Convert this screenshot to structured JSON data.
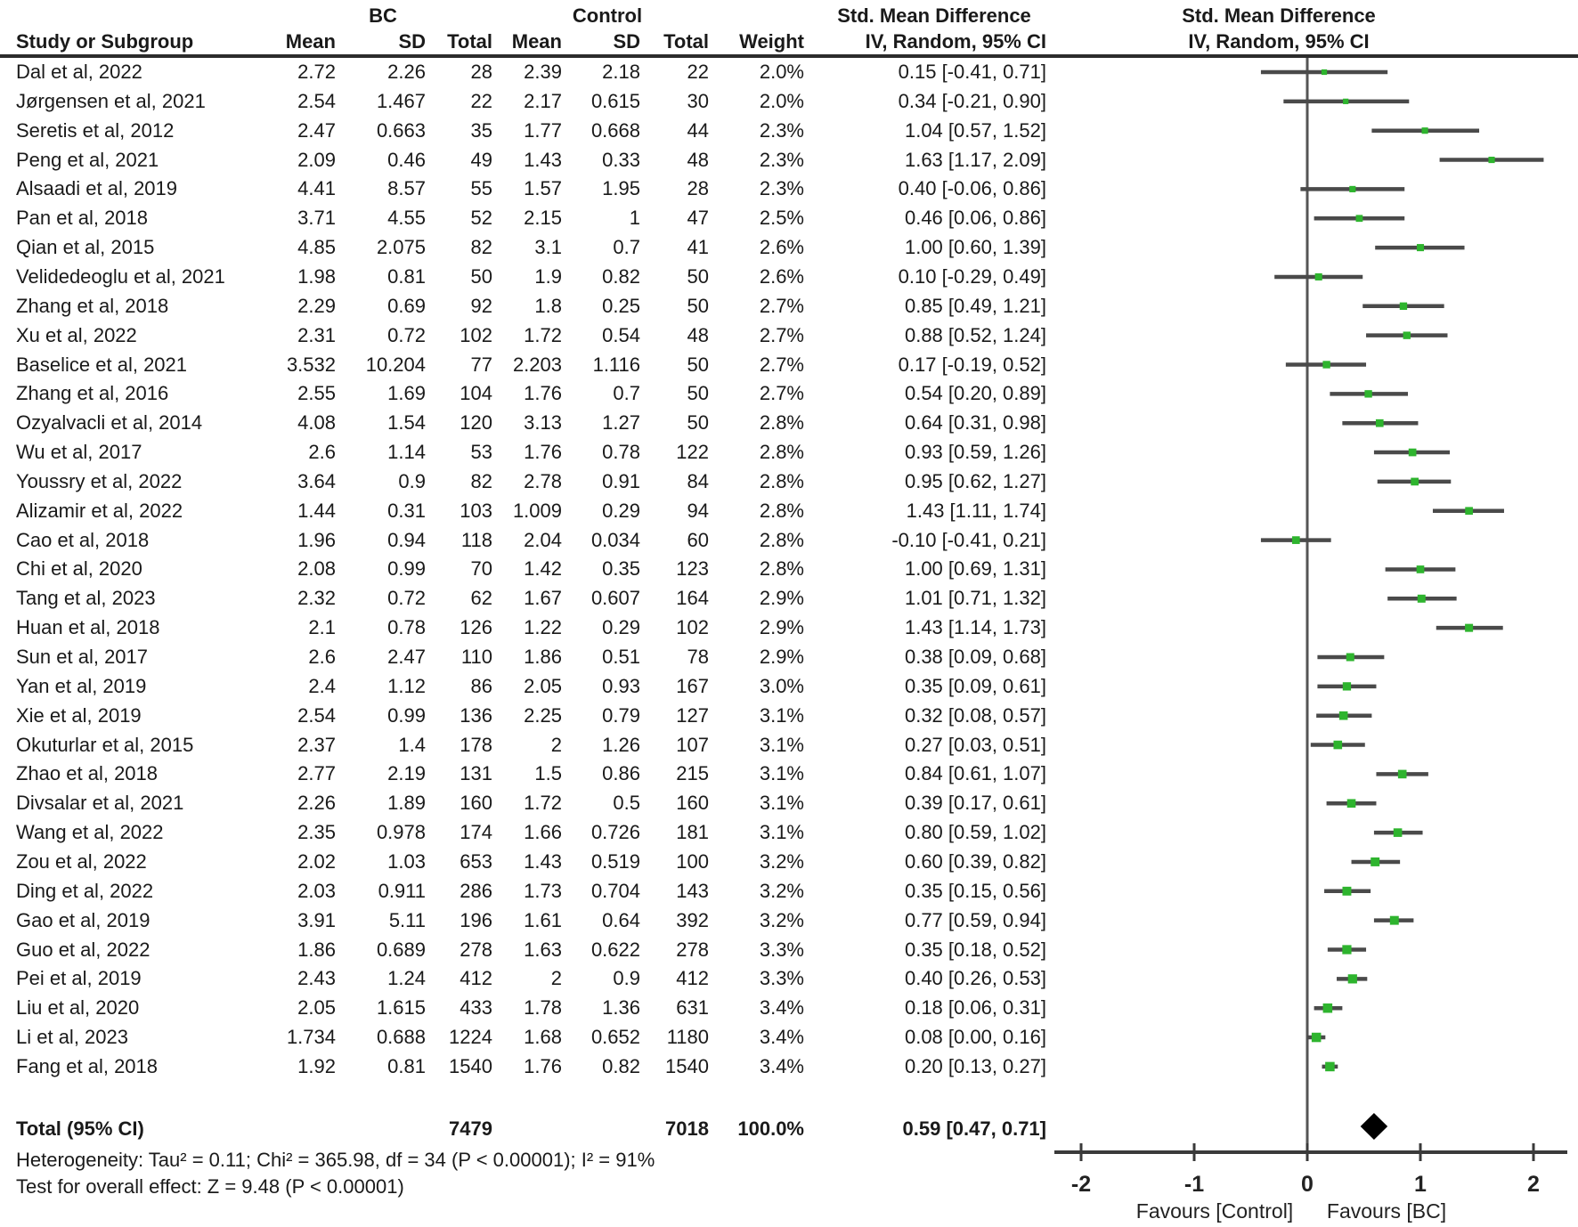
{
  "header": {
    "group_bc": "BC",
    "group_control": "Control",
    "smd": "Std. Mean Difference",
    "method": "IV, Random, 95% CI",
    "study": "Study or Subgroup",
    "mean": "Mean",
    "sd": "SD",
    "total": "Total",
    "weight": "Weight"
  },
  "chart_data": {
    "type": "forest",
    "effect_measure": "Std. Mean Difference",
    "model": "IV, Random, 95% CI",
    "studies": [
      {
        "name": "Dal et al, 2022",
        "bc_mean": "2.72",
        "bc_sd": "2.26",
        "bc_total": "28",
        "c_mean": "2.39",
        "c_sd": "2.18",
        "c_total": "22",
        "weight": "2.0%",
        "ci_label": "0.15 [-0.41, 0.71]",
        "est": 0.15,
        "lo": -0.41,
        "hi": 0.71,
        "w": 2.0
      },
      {
        "name": "Jørgensen et al, 2021",
        "bc_mean": "2.54",
        "bc_sd": "1.467",
        "bc_total": "22",
        "c_mean": "2.17",
        "c_sd": "0.615",
        "c_total": "30",
        "weight": "2.0%",
        "ci_label": "0.34 [-0.21, 0.90]",
        "est": 0.34,
        "lo": -0.21,
        "hi": 0.9,
        "w": 2.0
      },
      {
        "name": "Seretis et al, 2012",
        "bc_mean": "2.47",
        "bc_sd": "0.663",
        "bc_total": "35",
        "c_mean": "1.77",
        "c_sd": "0.668",
        "c_total": "44",
        "weight": "2.3%",
        "ci_label": "1.04 [0.57, 1.52]",
        "est": 1.04,
        "lo": 0.57,
        "hi": 1.52,
        "w": 2.3
      },
      {
        "name": "Peng et al, 2021",
        "bc_mean": "2.09",
        "bc_sd": "0.46",
        "bc_total": "49",
        "c_mean": "1.43",
        "c_sd": "0.33",
        "c_total": "48",
        "weight": "2.3%",
        "ci_label": "1.63 [1.17, 2.09]",
        "est": 1.63,
        "lo": 1.17,
        "hi": 2.09,
        "w": 2.3
      },
      {
        "name": "Alsaadi et al, 2019",
        "bc_mean": "4.41",
        "bc_sd": "8.57",
        "bc_total": "55",
        "c_mean": "1.57",
        "c_sd": "1.95",
        "c_total": "28",
        "weight": "2.3%",
        "ci_label": "0.40 [-0.06, 0.86]",
        "est": 0.4,
        "lo": -0.06,
        "hi": 0.86,
        "w": 2.3
      },
      {
        "name": "Pan et al, 2018",
        "bc_mean": "3.71",
        "bc_sd": "4.55",
        "bc_total": "52",
        "c_mean": "2.15",
        "c_sd": "1",
        "c_total": "47",
        "weight": "2.5%",
        "ci_label": "0.46 [0.06, 0.86]",
        "est": 0.46,
        "lo": 0.06,
        "hi": 0.86,
        "w": 2.5
      },
      {
        "name": "Qian et al, 2015",
        "bc_mean": "4.85",
        "bc_sd": "2.075",
        "bc_total": "82",
        "c_mean": "3.1",
        "c_sd": "0.7",
        "c_total": "41",
        "weight": "2.6%",
        "ci_label": "1.00 [0.60, 1.39]",
        "est": 1.0,
        "lo": 0.6,
        "hi": 1.39,
        "w": 2.6
      },
      {
        "name": "Velidedeoglu et al, 2021",
        "bc_mean": "1.98",
        "bc_sd": "0.81",
        "bc_total": "50",
        "c_mean": "1.9",
        "c_sd": "0.82",
        "c_total": "50",
        "weight": "2.6%",
        "ci_label": "0.10 [-0.29, 0.49]",
        "est": 0.1,
        "lo": -0.29,
        "hi": 0.49,
        "w": 2.6
      },
      {
        "name": "Zhang et al, 2018",
        "bc_mean": "2.29",
        "bc_sd": "0.69",
        "bc_total": "92",
        "c_mean": "1.8",
        "c_sd": "0.25",
        "c_total": "50",
        "weight": "2.7%",
        "ci_label": "0.85 [0.49, 1.21]",
        "est": 0.85,
        "lo": 0.49,
        "hi": 1.21,
        "w": 2.7
      },
      {
        "name": "Xu et al, 2022",
        "bc_mean": "2.31",
        "bc_sd": "0.72",
        "bc_total": "102",
        "c_mean": "1.72",
        "c_sd": "0.54",
        "c_total": "48",
        "weight": "2.7%",
        "ci_label": "0.88 [0.52, 1.24]",
        "est": 0.88,
        "lo": 0.52,
        "hi": 1.24,
        "w": 2.7
      },
      {
        "name": "Baselice et al, 2021",
        "bc_mean": "3.532",
        "bc_sd": "10.204",
        "bc_total": "77",
        "c_mean": "2.203",
        "c_sd": "1.116",
        "c_total": "50",
        "weight": "2.7%",
        "ci_label": "0.17 [-0.19, 0.52]",
        "est": 0.17,
        "lo": -0.19,
        "hi": 0.52,
        "w": 2.7
      },
      {
        "name": "Zhang et al, 2016",
        "bc_mean": "2.55",
        "bc_sd": "1.69",
        "bc_total": "104",
        "c_mean": "1.76",
        "c_sd": "0.7",
        "c_total": "50",
        "weight": "2.7%",
        "ci_label": "0.54 [0.20, 0.89]",
        "est": 0.54,
        "lo": 0.2,
        "hi": 0.89,
        "w": 2.7
      },
      {
        "name": "Ozyalvacli et al, 2014",
        "bc_mean": "4.08",
        "bc_sd": "1.54",
        "bc_total": "120",
        "c_mean": "3.13",
        "c_sd": "1.27",
        "c_total": "50",
        "weight": "2.8%",
        "ci_label": "0.64 [0.31, 0.98]",
        "est": 0.64,
        "lo": 0.31,
        "hi": 0.98,
        "w": 2.8
      },
      {
        "name": "Wu et al, 2017",
        "bc_mean": "2.6",
        "bc_sd": "1.14",
        "bc_total": "53",
        "c_mean": "1.76",
        "c_sd": "0.78",
        "c_total": "122",
        "weight": "2.8%",
        "ci_label": "0.93 [0.59, 1.26]",
        "est": 0.93,
        "lo": 0.59,
        "hi": 1.26,
        "w": 2.8
      },
      {
        "name": "Youssry et al, 2022",
        "bc_mean": "3.64",
        "bc_sd": "0.9",
        "bc_total": "82",
        "c_mean": "2.78",
        "c_sd": "0.91",
        "c_total": "84",
        "weight": "2.8%",
        "ci_label": "0.95 [0.62, 1.27]",
        "est": 0.95,
        "lo": 0.62,
        "hi": 1.27,
        "w": 2.8
      },
      {
        "name": "Alizamir et al, 2022",
        "bc_mean": "1.44",
        "bc_sd": "0.31",
        "bc_total": "103",
        "c_mean": "1.009",
        "c_sd": "0.29",
        "c_total": "94",
        "weight": "2.8%",
        "ci_label": "1.43 [1.11, 1.74]",
        "est": 1.43,
        "lo": 1.11,
        "hi": 1.74,
        "w": 2.8
      },
      {
        "name": "Cao et al, 2018",
        "bc_mean": "1.96",
        "bc_sd": "0.94",
        "bc_total": "118",
        "c_mean": "2.04",
        "c_sd": "0.034",
        "c_total": "60",
        "weight": "2.8%",
        "ci_label": "-0.10 [-0.41, 0.21]",
        "est": -0.1,
        "lo": -0.41,
        "hi": 0.21,
        "w": 2.8
      },
      {
        "name": "Chi et al, 2020",
        "bc_mean": "2.08",
        "bc_sd": "0.99",
        "bc_total": "70",
        "c_mean": "1.42",
        "c_sd": "0.35",
        "c_total": "123",
        "weight": "2.8%",
        "ci_label": "1.00 [0.69, 1.31]",
        "est": 1.0,
        "lo": 0.69,
        "hi": 1.31,
        "w": 2.8
      },
      {
        "name": "Tang et al, 2023",
        "bc_mean": "2.32",
        "bc_sd": "0.72",
        "bc_total": "62",
        "c_mean": "1.67",
        "c_sd": "0.607",
        "c_total": "164",
        "weight": "2.9%",
        "ci_label": "1.01 [0.71, 1.32]",
        "est": 1.01,
        "lo": 0.71,
        "hi": 1.32,
        "w": 2.9
      },
      {
        "name": "Huan et al, 2018",
        "bc_mean": "2.1",
        "bc_sd": "0.78",
        "bc_total": "126",
        "c_mean": "1.22",
        "c_sd": "0.29",
        "c_total": "102",
        "weight": "2.9%",
        "ci_label": "1.43 [1.14, 1.73]",
        "est": 1.43,
        "lo": 1.14,
        "hi": 1.73,
        "w": 2.9
      },
      {
        "name": "Sun et al, 2017",
        "bc_mean": "2.6",
        "bc_sd": "2.47",
        "bc_total": "110",
        "c_mean": "1.86",
        "c_sd": "0.51",
        "c_total": "78",
        "weight": "2.9%",
        "ci_label": "0.38 [0.09, 0.68]",
        "est": 0.38,
        "lo": 0.09,
        "hi": 0.68,
        "w": 2.9
      },
      {
        "name": "Yan et al, 2019",
        "bc_mean": "2.4",
        "bc_sd": "1.12",
        "bc_total": "86",
        "c_mean": "2.05",
        "c_sd": "0.93",
        "c_total": "167",
        "weight": "3.0%",
        "ci_label": "0.35 [0.09, 0.61]",
        "est": 0.35,
        "lo": 0.09,
        "hi": 0.61,
        "w": 3.0
      },
      {
        "name": "Xie et al, 2019",
        "bc_mean": "2.54",
        "bc_sd": "0.99",
        "bc_total": "136",
        "c_mean": "2.25",
        "c_sd": "0.79",
        "c_total": "127",
        "weight": "3.1%",
        "ci_label": "0.32 [0.08, 0.57]",
        "est": 0.32,
        "lo": 0.08,
        "hi": 0.57,
        "w": 3.1
      },
      {
        "name": "Okuturlar et al, 2015",
        "bc_mean": "2.37",
        "bc_sd": "1.4",
        "bc_total": "178",
        "c_mean": "2",
        "c_sd": "1.26",
        "c_total": "107",
        "weight": "3.1%",
        "ci_label": "0.27 [0.03, 0.51]",
        "est": 0.27,
        "lo": 0.03,
        "hi": 0.51,
        "w": 3.1
      },
      {
        "name": "Zhao et al, 2018",
        "bc_mean": "2.77",
        "bc_sd": "2.19",
        "bc_total": "131",
        "c_mean": "1.5",
        "c_sd": "0.86",
        "c_total": "215",
        "weight": "3.1%",
        "ci_label": "0.84 [0.61, 1.07]",
        "est": 0.84,
        "lo": 0.61,
        "hi": 1.07,
        "w": 3.1
      },
      {
        "name": "Divsalar et al, 2021",
        "bc_mean": "2.26",
        "bc_sd": "1.89",
        "bc_total": "160",
        "c_mean": "1.72",
        "c_sd": "0.5",
        "c_total": "160",
        "weight": "3.1%",
        "ci_label": "0.39 [0.17, 0.61]",
        "est": 0.39,
        "lo": 0.17,
        "hi": 0.61,
        "w": 3.1
      },
      {
        "name": "Wang et al, 2022",
        "bc_mean": "2.35",
        "bc_sd": "0.978",
        "bc_total": "174",
        "c_mean": "1.66",
        "c_sd": "0.726",
        "c_total": "181",
        "weight": "3.1%",
        "ci_label": "0.80 [0.59, 1.02]",
        "est": 0.8,
        "lo": 0.59,
        "hi": 1.02,
        "w": 3.1
      },
      {
        "name": "Zou et al, 2022",
        "bc_mean": "2.02",
        "bc_sd": "1.03",
        "bc_total": "653",
        "c_mean": "1.43",
        "c_sd": "0.519",
        "c_total": "100",
        "weight": "3.2%",
        "ci_label": "0.60 [0.39, 0.82]",
        "est": 0.6,
        "lo": 0.39,
        "hi": 0.82,
        "w": 3.2
      },
      {
        "name": "Ding et al, 2022",
        "bc_mean": "2.03",
        "bc_sd": "0.911",
        "bc_total": "286",
        "c_mean": "1.73",
        "c_sd": "0.704",
        "c_total": "143",
        "weight": "3.2%",
        "ci_label": "0.35 [0.15, 0.56]",
        "est": 0.35,
        "lo": 0.15,
        "hi": 0.56,
        "w": 3.2
      },
      {
        "name": "Gao et al, 2019",
        "bc_mean": "3.91",
        "bc_sd": "5.11",
        "bc_total": "196",
        "c_mean": "1.61",
        "c_sd": "0.64",
        "c_total": "392",
        "weight": "3.2%",
        "ci_label": "0.77 [0.59, 0.94]",
        "est": 0.77,
        "lo": 0.59,
        "hi": 0.94,
        "w": 3.2
      },
      {
        "name": "Guo et al, 2022",
        "bc_mean": "1.86",
        "bc_sd": "0.689",
        "bc_total": "278",
        "c_mean": "1.63",
        "c_sd": "0.622",
        "c_total": "278",
        "weight": "3.3%",
        "ci_label": "0.35 [0.18, 0.52]",
        "est": 0.35,
        "lo": 0.18,
        "hi": 0.52,
        "w": 3.3
      },
      {
        "name": "Pei et al, 2019",
        "bc_mean": "2.43",
        "bc_sd": "1.24",
        "bc_total": "412",
        "c_mean": "2",
        "c_sd": "0.9",
        "c_total": "412",
        "weight": "3.3%",
        "ci_label": "0.40 [0.26, 0.53]",
        "est": 0.4,
        "lo": 0.26,
        "hi": 0.53,
        "w": 3.3
      },
      {
        "name": "Liu et al, 2020",
        "bc_mean": "2.05",
        "bc_sd": "1.615",
        "bc_total": "433",
        "c_mean": "1.78",
        "c_sd": "1.36",
        "c_total": "631",
        "weight": "3.4%",
        "ci_label": "0.18 [0.06, 0.31]",
        "est": 0.18,
        "lo": 0.06,
        "hi": 0.31,
        "w": 3.4
      },
      {
        "name": "Li et al, 2023",
        "bc_mean": "1.734",
        "bc_sd": "0.688",
        "bc_total": "1224",
        "c_mean": "1.68",
        "c_sd": "0.652",
        "c_total": "1180",
        "weight": "3.4%",
        "ci_label": "0.08 [0.00, 0.16]",
        "est": 0.08,
        "lo": 0.0,
        "hi": 0.16,
        "w": 3.4
      },
      {
        "name": "Fang et al, 2018",
        "bc_mean": "1.92",
        "bc_sd": "0.81",
        "bc_total": "1540",
        "c_mean": "1.76",
        "c_sd": "0.82",
        "c_total": "1540",
        "weight": "3.4%",
        "ci_label": "0.20 [0.13, 0.27]",
        "est": 0.2,
        "lo": 0.13,
        "hi": 0.27,
        "w": 3.4
      }
    ],
    "total": {
      "label": "Total (95% CI)",
      "bc_total": "7479",
      "c_total": "7018",
      "weight": "100.0%",
      "ci_label": "0.59 [0.47, 0.71]",
      "est": 0.59,
      "lo": 0.47,
      "hi": 0.71
    },
    "heterogeneity": "Heterogeneity: Tau² = 0.11; Chi² = 365.98, df = 34 (P < 0.00001); I² = 91%",
    "overall_effect": "Test for overall effect: Z = 9.48 (P < 0.00001)",
    "axis": {
      "ticks": [
        "-2",
        "-1",
        "0",
        "1",
        "2"
      ],
      "min": -2,
      "max": 2,
      "favours_left": "Favours [Control]",
      "favours_right": "Favours [BC]"
    },
    "colors": {
      "marker": "#2eb42e",
      "ci_line": "#4a4a4a",
      "diamond": "#000000",
      "axis": "#3a3a3a",
      "rule": "#2b2b2b"
    }
  }
}
